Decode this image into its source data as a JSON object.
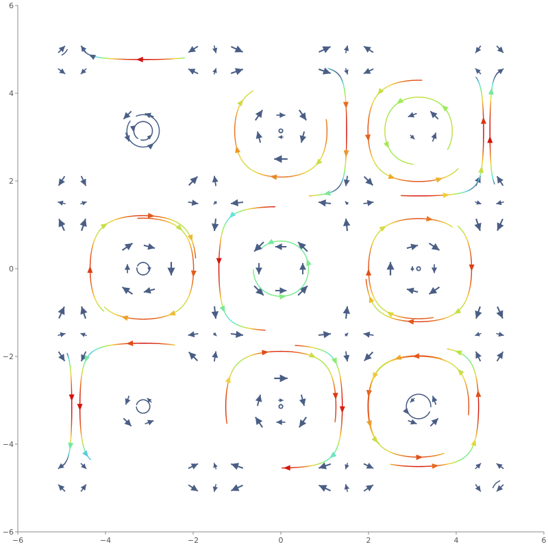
{
  "chart_data": {
    "type": "streamplot",
    "title": "",
    "xlabel": "",
    "ylabel": "",
    "xlim": [
      -6,
      6
    ],
    "ylim": [
      -6,
      6
    ],
    "x_ticks": [
      -6,
      -4,
      -2,
      0,
      2,
      4,
      6
    ],
    "y_ticks": [
      -6,
      -4,
      -2,
      0,
      2,
      4,
      6
    ],
    "x_tick_labels": [
      "−6",
      "−4",
      "−2",
      "0",
      "2",
      "4",
      "6"
    ],
    "y_tick_labels": [
      "−6",
      "−4",
      "−2",
      "0",
      "2",
      "4",
      "6"
    ],
    "field_domain": [
      -5,
      5
    ],
    "field_grid_step": 0.5,
    "vector_field": {
      "u": "-sin(y)*cos(x)",
      "v": "sin(x)*cos(y)"
    },
    "grid": false,
    "legend": "none",
    "colors": {
      "slow": "#4a5e85",
      "medium_slow": "#5ee0e8",
      "medium": "#8ef05a",
      "medium_fast": "#f0d23a",
      "fast": "#e8701e",
      "fastest": "#d20a0a"
    },
    "streamline_seeds": [
      [
        -4.9,
        4.95
      ],
      [
        -4.3,
        4.85
      ],
      [
        -3.0,
        3.3
      ],
      [
        0.0,
        3.1
      ],
      [
        1.5,
        3.1
      ],
      [
        -0.2,
        2.1
      ],
      [
        2.0,
        2.9
      ],
      [
        -3.0,
        2.8
      ],
      [
        -1.4,
        0.4
      ],
      [
        -2.0,
        -0.2
      ],
      [
        -3.0,
        0.0
      ],
      [
        -4.0,
        1.0
      ],
      [
        -4.4,
        -2.0
      ],
      [
        -4.8,
        -4.0
      ],
      [
        0.0,
        -3.1
      ],
      [
        -0.3,
        -1.9
      ],
      [
        1.4,
        -3.0
      ],
      [
        2.0,
        -2.9
      ],
      [
        4.9,
        -4.9
      ],
      [
        4.4,
        -4.0
      ],
      [
        3.0,
        -2.0
      ],
      [
        3.1,
        0.0
      ],
      [
        2.0,
        0.0
      ],
      [
        4.0,
        -1.0
      ],
      [
        4.5,
        2.0
      ],
      [
        4.8,
        4.0
      ],
      [
        3.0,
        3.9
      ],
      [
        0.5,
        -0.4
      ],
      [
        2.9,
        -3.0
      ],
      [
        -3.0,
        -3.2
      ]
    ]
  }
}
